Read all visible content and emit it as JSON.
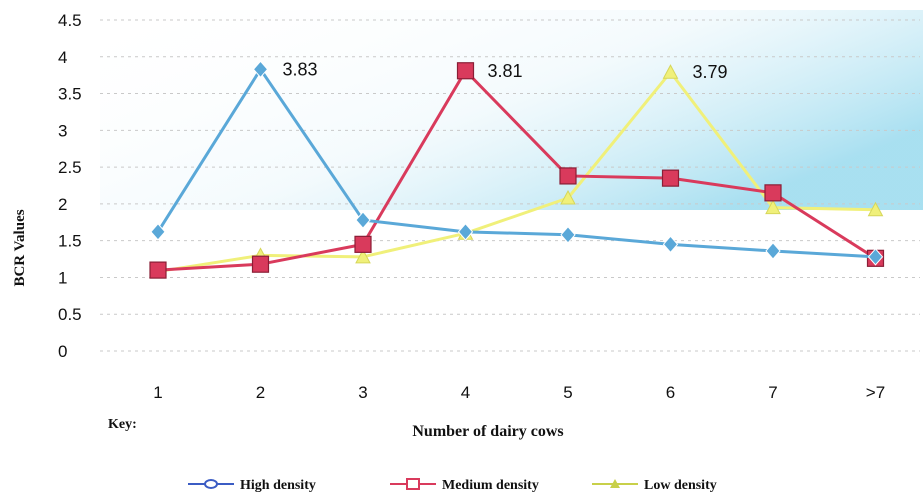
{
  "chart_data": {
    "type": "line",
    "categories": [
      "1",
      "2",
      "3",
      "4",
      "5",
      "6",
      "7",
      ">7"
    ],
    "ylabel": "BCR Values",
    "xlabel": "Number of dairy cows",
    "key_label": "Key:",
    "ylim": [
      0,
      4.5
    ],
    "yticks": [
      "0",
      "0.5",
      "1",
      "1.5",
      "2",
      "2.5",
      "3",
      "3.5",
      "4",
      "4.5"
    ],
    "grid": true,
    "legend_position": "bottom",
    "series": [
      {
        "name": "High density",
        "color": "#5aa8d8",
        "legend_color": "#3b5cc4",
        "marker": "diamond",
        "values": [
          1.62,
          3.83,
          1.78,
          1.62,
          1.58,
          1.45,
          1.36,
          1.28
        ]
      },
      {
        "name": "Medium density",
        "color": "#d93a5c",
        "legend_color": "#d93a5c",
        "marker": "square",
        "values": [
          1.1,
          1.18,
          1.45,
          3.81,
          2.38,
          2.35,
          2.15,
          1.26
        ]
      },
      {
        "name": "Low density",
        "color": "#f0f07a",
        "legend_color": "#c8d04a",
        "marker": "triangle",
        "values": [
          1.08,
          1.3,
          1.28,
          1.6,
          2.08,
          3.79,
          1.95,
          1.92
        ]
      }
    ],
    "annotations": [
      {
        "text": "3.83",
        "category": "2",
        "value": 3.83
      },
      {
        "text": "3.81",
        "category": "4",
        "value": 3.81
      },
      {
        "text": "3.79",
        "category": "6",
        "value": 3.79
      }
    ]
  }
}
